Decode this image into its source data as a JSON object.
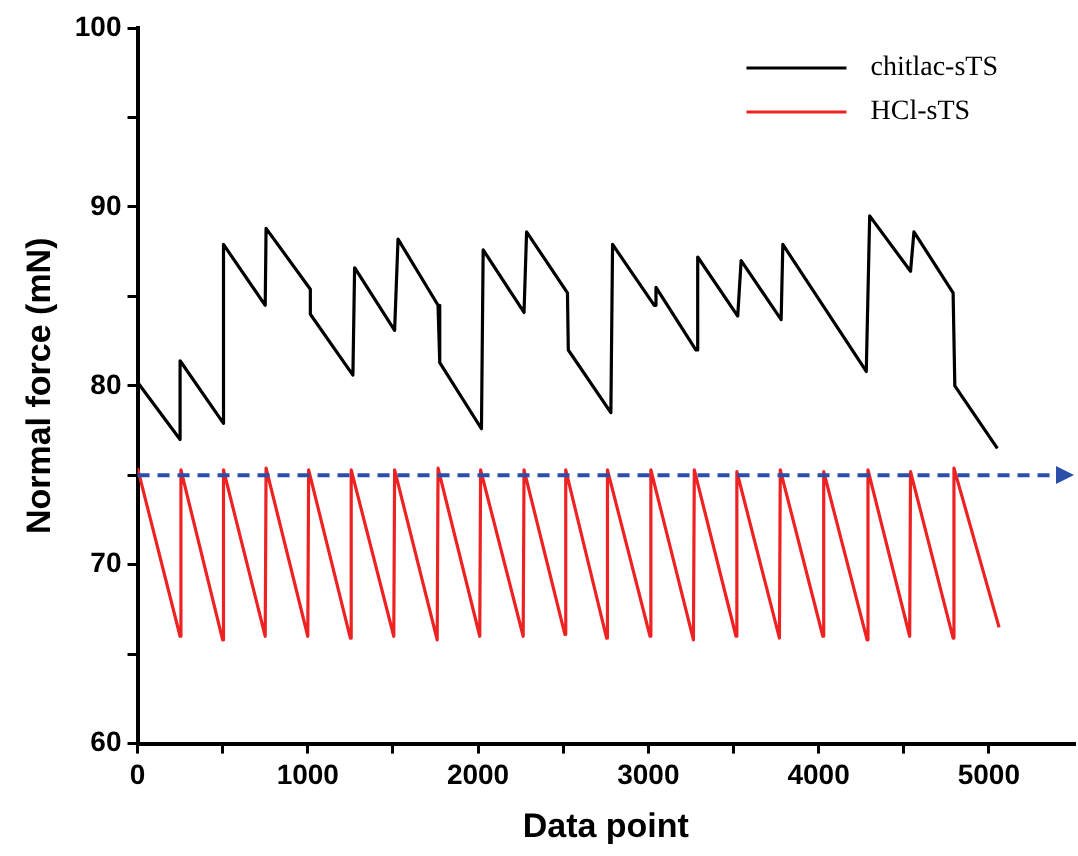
{
  "chart_data": {
    "type": "line",
    "xlabel": "Data point",
    "ylabel": "Normal force (mN)",
    "xlim": [
      0,
      5500
    ],
    "xticks": [
      0,
      {
        "value": 500,
        "label": null
      },
      1000,
      {
        "value": 1500,
        "label": null
      },
      2000,
      {
        "value": 2500,
        "label": null
      },
      3000,
      {
        "value": 3500,
        "label": null
      },
      4000,
      {
        "value": 4500,
        "label": null
      },
      5000
    ],
    "ylim": [
      60,
      100
    ],
    "yticks": [
      60,
      {
        "value": 65,
        "label": null
      },
      70,
      {
        "value": 75,
        "label": null
      },
      80,
      {
        "value": 85,
        "label": null
      },
      90,
      {
        "value": 95,
        "label": null
      },
      100
    ],
    "grid": false,
    "legend": "top right",
    "marker": "none",
    "line_style": "solid",
    "series": [
      {
        "name": "chitlac-sTS",
        "color": "#000000",
        "x": [
          0,
          250,
          250,
          505,
          505,
          750,
          755,
          1015,
          1015,
          1265,
          1275,
          1510,
          1530,
          1765,
          1775,
          2020,
          2030,
          2270,
          2285,
          2525,
          2530,
          2780,
          2790,
          3035,
          3045,
          3280,
          3290,
          3525,
          3545,
          3780,
          3790,
          4280,
          4300,
          4540,
          4560,
          4790,
          4800,
          5050
        ],
        "values": [
          80.2,
          77.0,
          81.4,
          77.9,
          87.9,
          84.5,
          88.8,
          85.4,
          84.0,
          80.6,
          86.6,
          83.1,
          88.2,
          84.5,
          81.3,
          77.6,
          87.6,
          84.1,
          88.6,
          85.2,
          82.0,
          78.5,
          87.9,
          84.5,
          85.5,
          82.0,
          87.2,
          83.9,
          87.0,
          83.7,
          87.9,
          80.8,
          89.5,
          86.4,
          88.6,
          85.2,
          80.0,
          76.5
        ]
      },
      {
        "name": "HCl-sTS",
        "color": "#ee2222",
        "x": [
          0,
          250,
          255,
          500,
          505,
          750,
          755,
          1000,
          1005,
          1250,
          1255,
          1505,
          1510,
          1760,
          1765,
          2010,
          2015,
          2265,
          2270,
          2510,
          2515,
          2755,
          2760,
          3010,
          3015,
          3265,
          3270,
          3515,
          3520,
          3770,
          3775,
          4025,
          4030,
          4285,
          4290,
          4535,
          4540,
          4790,
          4795,
          5060
        ],
        "values": [
          75.4,
          66.0,
          75.3,
          65.8,
          75.3,
          66.0,
          75.4,
          66.0,
          75.3,
          65.9,
          75.3,
          66.0,
          75.3,
          65.8,
          75.4,
          66.0,
          75.3,
          66.0,
          75.3,
          66.1,
          75.3,
          65.9,
          75.3,
          66.0,
          75.3,
          65.8,
          75.3,
          66.0,
          75.2,
          65.9,
          75.3,
          66.0,
          75.2,
          65.8,
          75.3,
          66.0,
          75.2,
          65.9,
          75.4,
          66.5
        ]
      }
    ],
    "ref_lines": [
      {
        "axis": "y",
        "value": 75,
        "color": "#2b4fa8",
        "line_style": "dashed"
      }
    ]
  }
}
